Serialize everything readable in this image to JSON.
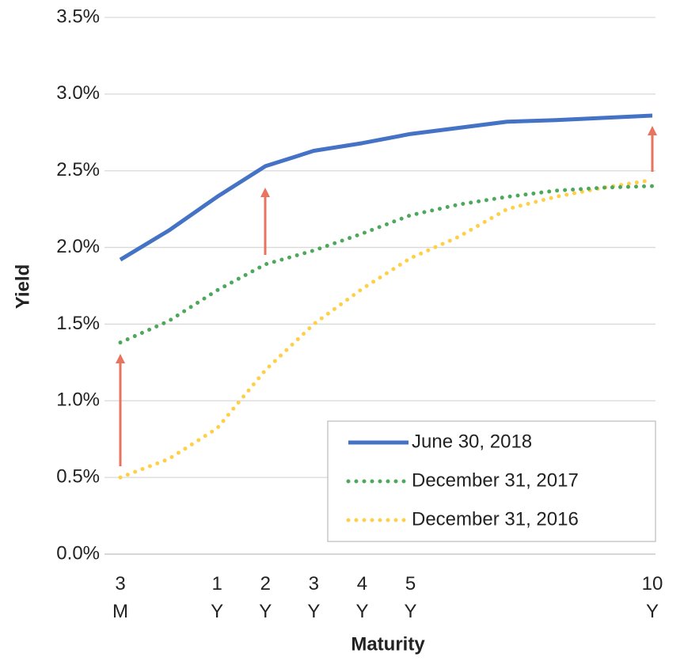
{
  "chart_data": {
    "type": "line",
    "x_label": "Maturity",
    "y_label": "Yield",
    "categories": [
      "3\nM",
      null,
      "1\nY",
      "2\nY",
      "3\nY",
      "4\nY",
      "5\nY",
      null,
      null,
      null,
      null,
      "10\nY"
    ],
    "series": [
      {
        "name": "June 30, 2018",
        "color": "#4472c4",
        "style": "solid",
        "values": [
          1.92,
          2.11,
          2.33,
          2.53,
          2.63,
          2.68,
          2.74,
          2.78,
          2.82,
          2.83,
          2.845,
          2.86
        ]
      },
      {
        "name": "December 31, 2017",
        "color": "#4ea85c",
        "style": "dotted",
        "values": [
          1.38,
          1.52,
          1.72,
          1.89,
          1.98,
          2.09,
          2.21,
          2.28,
          2.33,
          2.37,
          2.39,
          2.4
        ]
      },
      {
        "name": "December 31, 2016",
        "color": "#ffcf47",
        "style": "dotted",
        "values": [
          0.5,
          0.62,
          0.82,
          1.2,
          1.5,
          1.73,
          1.93,
          2.07,
          2.25,
          2.33,
          2.39,
          2.44
        ]
      }
    ],
    "ylim": [
      0,
      3.5
    ],
    "yticks": [
      {
        "value": 0,
        "label": "0.0%"
      },
      {
        "value": 0.5,
        "label": "0.5%"
      },
      {
        "value": 1,
        "label": "1.0%"
      },
      {
        "value": 1.5,
        "label": "1.5%"
      },
      {
        "value": 2,
        "label": "2.0%"
      },
      {
        "value": 2.5,
        "label": "2.5%"
      },
      {
        "value": 3,
        "label": "3.0%"
      },
      {
        "value": 3.5,
        "label": "3.5%"
      }
    ],
    "grid": true,
    "legend": "lower right"
  }
}
